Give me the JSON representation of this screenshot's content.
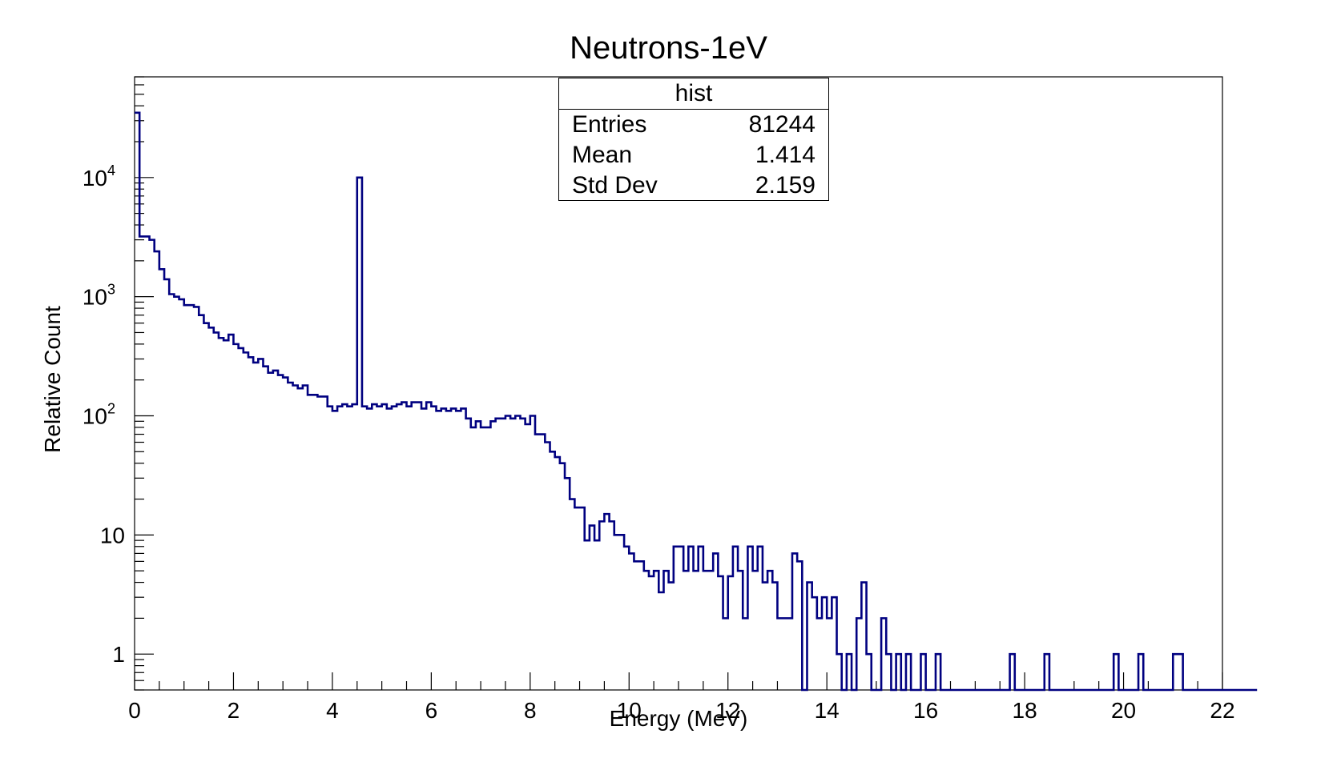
{
  "chart_data": {
    "type": "histogram",
    "title": "Neutrons-1eV",
    "xlabel": "Energy (MeV)",
    "ylabel": "Relative Count",
    "xlim": [
      0,
      22
    ],
    "ylim": [
      0.5,
      70000
    ],
    "yscale": "log",
    "line_color": "#000080",
    "x_ticks": [
      "0",
      "2",
      "4",
      "6",
      "8",
      "10",
      "12",
      "14",
      "16",
      "18",
      "20",
      "22"
    ],
    "y_ticks": [
      {
        "value": 1,
        "base": "1",
        "exp": ""
      },
      {
        "value": 10,
        "base": "10",
        "exp": ""
      },
      {
        "value": 100,
        "base": "10",
        "exp": "2"
      },
      {
        "value": 1000,
        "base": "10",
        "exp": "3"
      },
      {
        "value": 10000,
        "base": "10",
        "exp": "4"
      }
    ],
    "bin_edges_start": 0,
    "bin_width": 0.1,
    "counts": [
      35000,
      3200,
      3200,
      3000,
      2400,
      1700,
      1400,
      1050,
      1000,
      950,
      850,
      850,
      820,
      700,
      600,
      550,
      500,
      450,
      430,
      480,
      400,
      370,
      340,
      310,
      280,
      300,
      260,
      230,
      240,
      220,
      210,
      190,
      180,
      170,
      180,
      150,
      150,
      145,
      145,
      120,
      110,
      120,
      125,
      120,
      125,
      10000,
      120,
      115,
      125,
      120,
      125,
      115,
      120,
      125,
      130,
      120,
      130,
      130,
      115,
      130,
      120,
      110,
      115,
      110,
      115,
      110,
      115,
      95,
      80,
      90,
      80,
      80,
      90,
      95,
      95,
      100,
      95,
      100,
      95,
      85,
      100,
      70,
      70,
      60,
      50,
      45,
      40,
      30,
      20,
      17,
      17,
      9,
      12,
      9,
      13,
      15,
      13,
      10,
      10,
      8,
      7,
      6,
      6,
      5,
      4.5,
      5,
      3.3,
      5,
      4,
      8,
      8,
      5,
      8,
      5,
      8,
      5,
      5,
      7,
      4.5,
      2,
      4.5,
      8,
      5,
      2,
      8,
      5,
      8,
      4,
      5,
      4,
      2,
      2,
      2,
      7,
      6,
      0,
      4,
      3,
      2,
      3,
      2,
      3,
      1,
      0,
      1,
      0,
      2,
      4,
      1,
      0,
      0,
      2,
      1,
      0,
      1,
      0,
      1,
      0,
      0,
      1,
      0,
      0,
      1,
      0,
      0,
      0,
      0,
      0,
      0,
      0,
      0,
      0,
      0,
      0,
      0,
      0,
      0,
      1,
      0,
      0,
      0,
      0,
      0,
      0,
      1,
      0,
      0,
      0,
      0,
      0,
      0,
      0,
      0,
      0,
      0,
      0,
      0,
      0,
      1,
      0,
      0,
      0,
      0,
      1,
      0,
      0,
      0,
      0,
      0,
      0,
      1,
      1,
      0,
      0,
      0,
      0,
      0,
      0,
      0,
      0,
      0,
      0,
      0,
      0,
      0,
      0,
      0
    ]
  },
  "stats_box": {
    "name": "hist",
    "rows": [
      {
        "label": "Entries",
        "value": "81244"
      },
      {
        "label": "Mean",
        "value": "1.414"
      },
      {
        "label": "Std Dev",
        "value": "2.159"
      }
    ]
  }
}
